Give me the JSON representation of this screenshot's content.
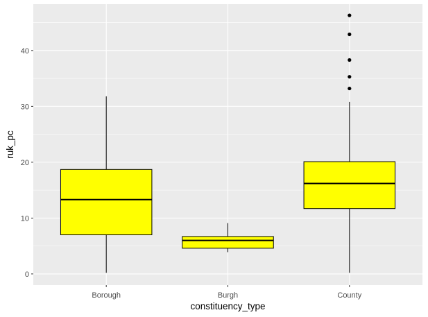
{
  "chart_data": {
    "type": "boxplot",
    "title": "",
    "xlabel": "constituency_type",
    "ylabel": "ruk_pc",
    "categories": [
      "Borough",
      "Burgh",
      "County"
    ],
    "boxes": [
      {
        "category": "Borough",
        "min": 0.2,
        "q1": 7.0,
        "median": 13.3,
        "q3": 18.7,
        "max": 31.8,
        "outliers": []
      },
      {
        "category": "Burgh",
        "min": 3.9,
        "q1": 4.6,
        "median": 6.0,
        "q3": 6.7,
        "max": 9.1,
        "outliers": []
      },
      {
        "category": "County",
        "min": 0.2,
        "q1": 11.7,
        "median": 16.2,
        "q3": 20.1,
        "max": 30.8,
        "outliers": [
          33.2,
          35.3,
          38.3,
          42.9,
          46.3
        ]
      }
    ],
    "ylim": [
      -2,
      48.3
    ],
    "yticks": [
      "0",
      "10",
      "20",
      "30",
      "40"
    ],
    "grid": true,
    "box_fill": "#FFFF00",
    "box_stroke": "#000000",
    "panel_background": "#EBEBEB",
    "grid_color": "#FFFFFF"
  }
}
